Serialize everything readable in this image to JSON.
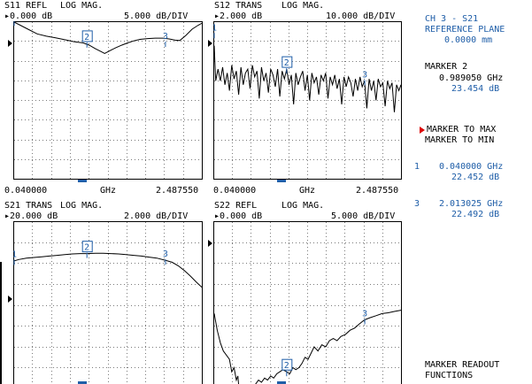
{
  "panels": [
    {
      "id": "s11",
      "param": "S11 REFL",
      "format": "LOG MAG.",
      "ref_value": "0.000 dB",
      "scale": "5.000 dB/DIV",
      "x_start": "0.040000",
      "x_unit": "GHz",
      "x_stop": "2.487550",
      "markers": [
        {
          "label": "1",
          "x": 0.04,
          "y": 0.2
        },
        {
          "label": "2",
          "x": 0.989,
          "y": -5.4,
          "active": true
        },
        {
          "label": "3",
          "x": 2.013,
          "y": -5.2
        }
      ],
      "ylim": [
        -40,
        0
      ],
      "trace": [
        [
          0.04,
          0.0
        ],
        [
          0.12,
          -0.8
        ],
        [
          0.22,
          -1.8
        ],
        [
          0.34,
          -3.0
        ],
        [
          0.46,
          -3.6
        ],
        [
          0.58,
          -4.0
        ],
        [
          0.7,
          -4.5
        ],
        [
          0.82,
          -5.0
        ],
        [
          0.94,
          -5.3
        ],
        [
          1.02,
          -5.9
        ],
        [
          1.1,
          -6.8
        ],
        [
          1.18,
          -7.6
        ],
        [
          1.22,
          -8.0
        ],
        [
          1.28,
          -7.4
        ],
        [
          1.36,
          -6.6
        ],
        [
          1.44,
          -5.9
        ],
        [
          1.52,
          -5.3
        ],
        [
          1.6,
          -4.8
        ],
        [
          1.68,
          -4.4
        ],
        [
          1.78,
          -4.2
        ],
        [
          1.88,
          -4.1
        ],
        [
          1.98,
          -4.1
        ],
        [
          2.06,
          -4.3
        ],
        [
          2.14,
          -4.6
        ],
        [
          2.2,
          -4.7
        ],
        [
          2.28,
          -3.4
        ],
        [
          2.36,
          -1.8
        ],
        [
          2.44,
          -0.8
        ],
        [
          2.4875,
          -0.3
        ]
      ]
    },
    {
      "id": "s12",
      "param": "S12 TRANS",
      "format": "LOG MAG.",
      "ref_value": "2.000 dB",
      "scale": "10.000 dB/DIV",
      "x_start": "0.040000",
      "x_unit": "GHz",
      "x_stop": "2.487550",
      "markers": [
        {
          "label": "1",
          "x": 0.04,
          "y": -4
        },
        {
          "label": "2",
          "x": 0.989,
          "y": -22,
          "active": true
        },
        {
          "label": "3",
          "x": 2.013,
          "y": -28
        }
      ],
      "ylim": [
        -78,
        2
      ],
      "trace": [
        [
          0.04,
          -10
        ],
        [
          0.06,
          -28
        ],
        [
          0.09,
          -22
        ],
        [
          0.12,
          -28
        ],
        [
          0.15,
          -21
        ],
        [
          0.18,
          -30
        ],
        [
          0.21,
          -24
        ],
        [
          0.24,
          -33
        ],
        [
          0.27,
          -20
        ],
        [
          0.3,
          -27
        ],
        [
          0.33,
          -23
        ],
        [
          0.36,
          -35
        ],
        [
          0.39,
          -21
        ],
        [
          0.42,
          -30
        ],
        [
          0.45,
          -24
        ],
        [
          0.48,
          -22
        ],
        [
          0.51,
          -32
        ],
        [
          0.54,
          -20
        ],
        [
          0.57,
          -26
        ],
        [
          0.6,
          -23
        ],
        [
          0.63,
          -37
        ],
        [
          0.66,
          -21
        ],
        [
          0.69,
          -28
        ],
        [
          0.72,
          -24
        ],
        [
          0.75,
          -34
        ],
        [
          0.78,
          -22
        ],
        [
          0.81,
          -25
        ],
        [
          0.84,
          -31
        ],
        [
          0.87,
          -22
        ],
        [
          0.9,
          -36
        ],
        [
          0.93,
          -23
        ],
        [
          0.96,
          -27
        ],
        [
          0.99,
          -22
        ],
        [
          1.02,
          -30
        ],
        [
          1.05,
          -25
        ],
        [
          1.08,
          -40
        ],
        [
          1.11,
          -24
        ],
        [
          1.14,
          -30
        ],
        [
          1.17,
          -26
        ],
        [
          1.2,
          -23
        ],
        [
          1.23,
          -33
        ],
        [
          1.26,
          -25
        ],
        [
          1.29,
          -38
        ],
        [
          1.32,
          -24
        ],
        [
          1.35,
          -29
        ],
        [
          1.38,
          -26
        ],
        [
          1.41,
          -35
        ],
        [
          1.44,
          -25
        ],
        [
          1.47,
          -28
        ],
        [
          1.5,
          -24
        ],
        [
          1.53,
          -37
        ],
        [
          1.56,
          -26
        ],
        [
          1.59,
          -30
        ],
        [
          1.62,
          -25
        ],
        [
          1.65,
          -32
        ],
        [
          1.68,
          -27
        ],
        [
          1.71,
          -40
        ],
        [
          1.74,
          -26
        ],
        [
          1.77,
          -31
        ],
        [
          1.8,
          -26
        ],
        [
          1.83,
          -29
        ],
        [
          1.86,
          -36
        ],
        [
          1.89,
          -27
        ],
        [
          1.92,
          -33
        ],
        [
          1.95,
          -26
        ],
        [
          1.98,
          -31
        ],
        [
          2.01,
          -28
        ],
        [
          2.04,
          -42
        ],
        [
          2.07,
          -27
        ],
        [
          2.1,
          -33
        ],
        [
          2.13,
          -28
        ],
        [
          2.16,
          -38
        ],
        [
          2.19,
          -27
        ],
        [
          2.22,
          -31
        ],
        [
          2.25,
          -29
        ],
        [
          2.28,
          -41
        ],
        [
          2.31,
          -28
        ],
        [
          2.34,
          -32
        ],
        [
          2.37,
          -29
        ],
        [
          2.4,
          -44
        ],
        [
          2.43,
          -30
        ],
        [
          2.46,
          -33
        ],
        [
          2.4875,
          -30
        ]
      ]
    },
    {
      "id": "s21",
      "param": "S21 TRANS",
      "format": "LOG MAG.",
      "ref_value": "20.000 dB",
      "scale": "2.000 dB/DIV",
      "x_start": "",
      "x_unit": "",
      "x_stop": "",
      "markers": [
        {
          "label": "1",
          "x": 0.04,
          "y": 22.452
        },
        {
          "label": "2",
          "x": 0.989,
          "y": 23.454,
          "active": true
        },
        {
          "label": "3",
          "x": 2.013,
          "y": 22.492
        }
      ],
      "ylim": [
        4,
        28
      ],
      "trace": [
        [
          0.04,
          22.4
        ],
        [
          0.1,
          22.6
        ],
        [
          0.2,
          22.8
        ],
        [
          0.3,
          22.9
        ],
        [
          0.4,
          23.0
        ],
        [
          0.5,
          23.1
        ],
        [
          0.6,
          23.2
        ],
        [
          0.7,
          23.3
        ],
        [
          0.8,
          23.4
        ],
        [
          0.9,
          23.45
        ],
        [
          0.99,
          23.45
        ],
        [
          1.1,
          23.5
        ],
        [
          1.2,
          23.5
        ],
        [
          1.3,
          23.45
        ],
        [
          1.4,
          23.4
        ],
        [
          1.5,
          23.3
        ],
        [
          1.6,
          23.2
        ],
        [
          1.7,
          23.1
        ],
        [
          1.8,
          22.95
        ],
        [
          1.9,
          22.8
        ],
        [
          2.01,
          22.5
        ],
        [
          2.1,
          22.2
        ],
        [
          2.18,
          21.7
        ],
        [
          2.26,
          21.0
        ],
        [
          2.34,
          20.2
        ],
        [
          2.42,
          19.3
        ],
        [
          2.4875,
          18.6
        ]
      ]
    },
    {
      "id": "s22",
      "param": "S22 REFL",
      "format": "LOG MAG.",
      "ref_value": "0.000 dB",
      "scale": "5.000 dB/DIV",
      "x_start": "",
      "x_unit": "",
      "x_stop": "",
      "markers": [
        {
          "label": "2",
          "x": 0.989,
          "y": -36,
          "active": true
        },
        {
          "label": "3",
          "x": 2.013,
          "y": -23.5
        }
      ],
      "ylim": [
        -40,
        0
      ],
      "trace": [
        [
          0.04,
          -22
        ],
        [
          0.08,
          -26
        ],
        [
          0.12,
          -29
        ],
        [
          0.16,
          -31
        ],
        [
          0.2,
          -32
        ],
        [
          0.24,
          -33
        ],
        [
          0.27,
          -36
        ],
        [
          0.3,
          -35
        ],
        [
          0.33,
          -38
        ],
        [
          0.35,
          -37
        ],
        [
          0.37,
          -41
        ],
        [
          0.4,
          -42
        ],
        [
          0.43,
          -40
        ],
        [
          0.46,
          -42
        ],
        [
          0.5,
          -41
        ],
        [
          0.54,
          -40
        ],
        [
          0.58,
          -39
        ],
        [
          0.62,
          -38
        ],
        [
          0.66,
          -38.5
        ],
        [
          0.7,
          -37.5
        ],
        [
          0.74,
          -38
        ],
        [
          0.78,
          -37
        ],
        [
          0.82,
          -37.5
        ],
        [
          0.86,
          -36.5
        ],
        [
          0.9,
          -36
        ],
        [
          0.94,
          -35.5
        ],
        [
          0.99,
          -36
        ],
        [
          1.03,
          -36.5
        ],
        [
          1.07,
          -35
        ],
        [
          1.11,
          -35.5
        ],
        [
          1.15,
          -35
        ],
        [
          1.19,
          -34
        ],
        [
          1.23,
          -32.5
        ],
        [
          1.27,
          -33
        ],
        [
          1.31,
          -31.5
        ],
        [
          1.35,
          -30
        ],
        [
          1.4,
          -31
        ],
        [
          1.45,
          -29.5
        ],
        [
          1.5,
          -30
        ],
        [
          1.55,
          -28.5
        ],
        [
          1.6,
          -28
        ],
        [
          1.65,
          -28.5
        ],
        [
          1.7,
          -27.5
        ],
        [
          1.76,
          -27
        ],
        [
          1.82,
          -26
        ],
        [
          1.88,
          -25.5
        ],
        [
          1.94,
          -24.5
        ],
        [
          2.01,
          -23.5
        ],
        [
          2.08,
          -23
        ],
        [
          2.16,
          -22.5
        ],
        [
          2.24,
          -22
        ],
        [
          2.32,
          -21.8
        ],
        [
          2.4,
          -21.5
        ],
        [
          2.4875,
          -21.2
        ]
      ]
    }
  ],
  "right": {
    "header_line1": "CH 3 - S21",
    "header_line2": "REFERENCE PLANE",
    "header_line3": "0.0000 mm",
    "active_marker_title": "MARKER 2",
    "active_marker_freq": "0.989050 GHz",
    "active_marker_val": "23.454 dB",
    "softkey1": "MARKER TO MAX",
    "softkey2": "MARKER TO MIN",
    "m1_num": "1",
    "m1_freq": "0.040000 GHz",
    "m1_val": "22.452 dB",
    "m3_num": "3",
    "m3_freq": "2.013025 GHz",
    "m3_val": "22.492 dB",
    "footer1": "MARKER READOUT",
    "footer2": "FUNCTIONS"
  },
  "colors": {
    "trace": "#000000",
    "marker": "#1f5ea8",
    "grid": "#7a7a7a",
    "softkey_arrow": "#dd0000"
  }
}
